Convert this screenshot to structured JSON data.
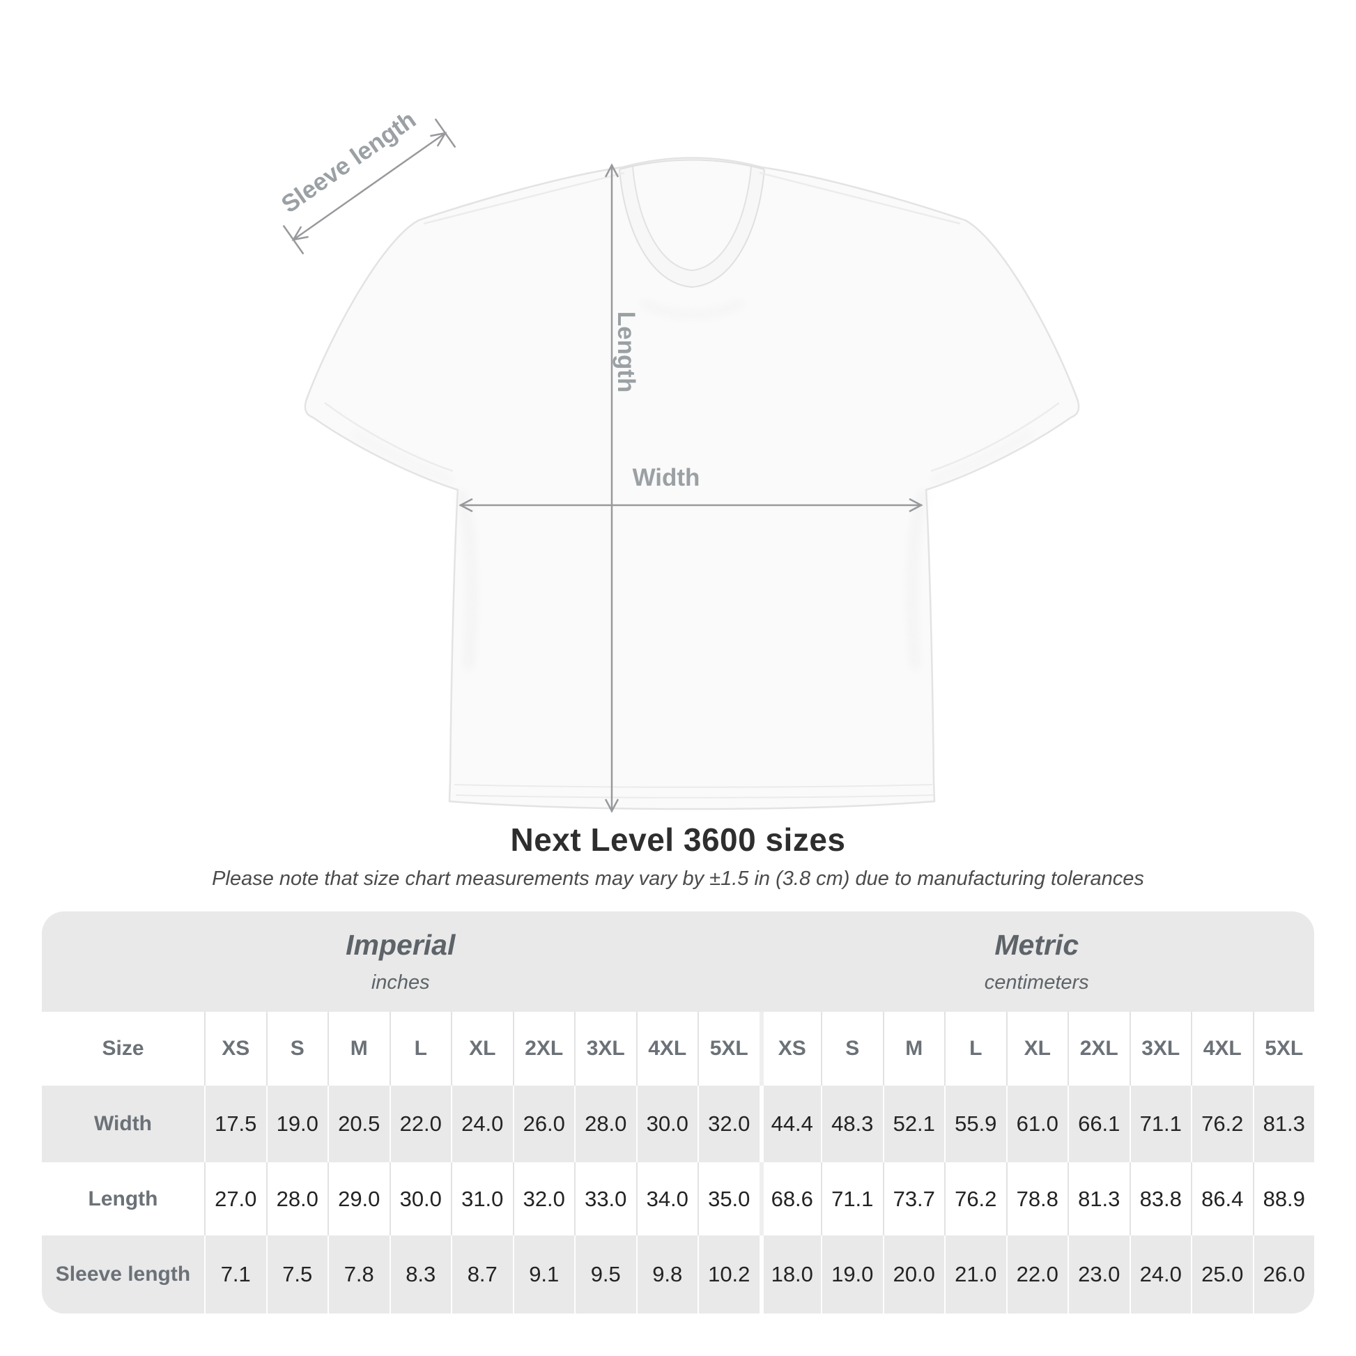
{
  "chart_data": {
    "type": "table",
    "title": "Next Level 3600 sizes",
    "subtitle": "Please note that size chart measurements may vary by ±1.5 in (3.8 cm) due to manufacturing tolerances",
    "diagram_labels": {
      "sleeve": "Sleeve length",
      "length": "Length",
      "width": "Width"
    },
    "groups": [
      {
        "label": "Imperial",
        "unit": "inches"
      },
      {
        "label": "Metric",
        "unit": "centimeters"
      }
    ],
    "size_header_label": "Size",
    "sizes": [
      "XS",
      "S",
      "M",
      "L",
      "XL",
      "2XL",
      "3XL",
      "4XL",
      "5XL"
    ],
    "rows": [
      {
        "label": "Width",
        "imperial": [
          "17.5",
          "19.0",
          "20.5",
          "22.0",
          "24.0",
          "26.0",
          "28.0",
          "30.0",
          "32.0"
        ],
        "metric": [
          "44.4",
          "48.3",
          "52.1",
          "55.9",
          "61.0",
          "66.1",
          "71.1",
          "76.2",
          "81.3"
        ]
      },
      {
        "label": "Length",
        "imperial": [
          "27.0",
          "28.0",
          "29.0",
          "30.0",
          "31.0",
          "32.0",
          "33.0",
          "34.0",
          "35.0"
        ],
        "metric": [
          "68.6",
          "71.1",
          "73.7",
          "76.2",
          "78.8",
          "81.3",
          "83.8",
          "86.4",
          "88.9"
        ]
      },
      {
        "label": "Sleeve length",
        "imperial": [
          "7.1",
          "7.5",
          "7.8",
          "8.3",
          "8.7",
          "9.1",
          "9.5",
          "9.8",
          "10.2"
        ],
        "metric": [
          "18.0",
          "19.0",
          "20.0",
          "21.0",
          "22.0",
          "23.0",
          "24.0",
          "25.0",
          "26.0"
        ]
      }
    ]
  },
  "colors": {
    "table_band": "#e9e9e9",
    "row_gray": "#e9e9e9",
    "row_white": "#ffffff",
    "label_text": "#6b7177",
    "value_text": "#232323",
    "heading_text": "#2e2e2e",
    "subtitle_text": "#4b4b4b",
    "dimension_gray": "#9aa0a3",
    "shirt_outline": "#e3e3e3"
  }
}
